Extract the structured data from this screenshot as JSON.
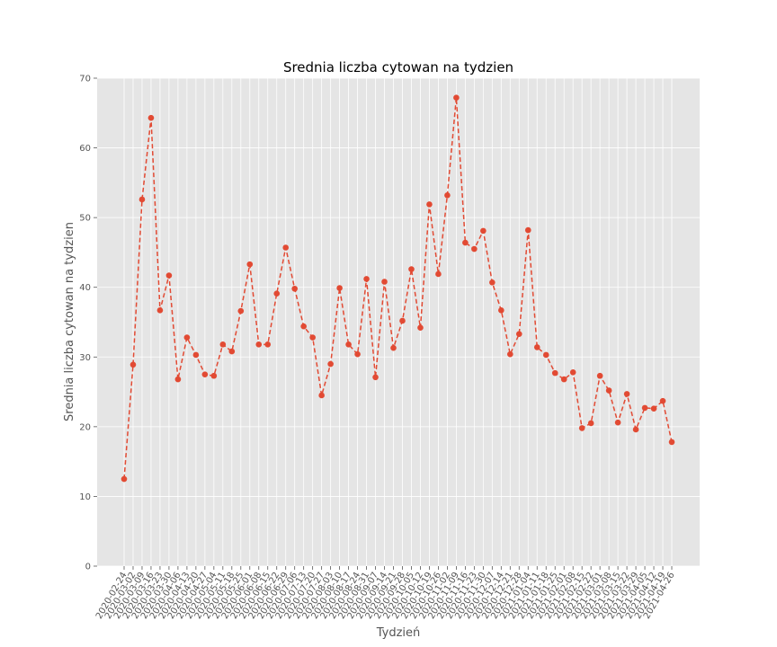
{
  "chart_data": {
    "type": "line",
    "title": "Srednia liczba cytowan na tydzien",
    "xlabel": "Tydzień",
    "ylabel": "Srednia liczba cytowan na tydzien",
    "ylim": [
      0,
      70
    ],
    "yticks": [
      "0",
      "10",
      "20",
      "30",
      "40",
      "50",
      "60",
      "70"
    ],
    "grid": true,
    "line_color": "#e24a33",
    "background_color": "#e5e5e5",
    "grid_color": "#ffffff",
    "line_style": "dashed",
    "marker": "circle",
    "x": [
      "2020-02-24",
      "2020-03-02",
      "2020-03-09",
      "2020-03-16",
      "2020-03-23",
      "2020-03-30",
      "2020-04-06",
      "2020-04-13",
      "2020-04-20",
      "2020-04-27",
      "2020-05-04",
      "2020-05-11",
      "2020-05-18",
      "2020-05-25",
      "2020-06-01",
      "2020-06-08",
      "2020-06-15",
      "2020-06-22",
      "2020-06-29",
      "2020-07-06",
      "2020-07-13",
      "2020-07-20",
      "2020-07-27",
      "2020-08-03",
      "2020-08-10",
      "2020-08-17",
      "2020-08-24",
      "2020-08-31",
      "2020-09-07",
      "2020-09-14",
      "2020-09-21",
      "2020-09-28",
      "2020-10-05",
      "2020-10-12",
      "2020-10-19",
      "2020-10-26",
      "2020-11-02",
      "2020-11-09",
      "2020-11-16",
      "2020-11-23",
      "2020-11-30",
      "2020-12-07",
      "2020-12-14",
      "2020-12-21",
      "2020-12-28",
      "2021-01-04",
      "2021-01-11",
      "2021-01-18",
      "2021-01-25",
      "2021-02-01",
      "2021-02-08",
      "2021-02-15",
      "2021-02-22",
      "2021-03-01",
      "2021-03-08",
      "2021-03-15",
      "2021-03-22",
      "2021-03-29",
      "2021-04-05",
      "2021-04-12",
      "2021-04-19",
      "2021-04-26"
    ],
    "series": [
      {
        "values": [
          12.5,
          28.9,
          52.6,
          64.3,
          36.7,
          41.7,
          26.8,
          32.8,
          30.3,
          27.5,
          27.3,
          31.8,
          30.8,
          36.6,
          43.3,
          31.8,
          31.8,
          39.1,
          45.7,
          39.8,
          34.4,
          32.8,
          24.5,
          29.0,
          39.9,
          31.8,
          30.4,
          41.2,
          27.1,
          40.8,
          31.3,
          35.2,
          42.6,
          34.2,
          51.9,
          41.9,
          53.2,
          67.2,
          46.4,
          45.5,
          48.1,
          40.7,
          36.7,
          30.4,
          33.3,
          48.2,
          31.4,
          30.3,
          27.7,
          26.8,
          27.8,
          19.8,
          20.5,
          27.3,
          25.2,
          20.6,
          24.7,
          19.6,
          22.7,
          22.6,
          23.7,
          17.8
        ]
      }
    ]
  }
}
